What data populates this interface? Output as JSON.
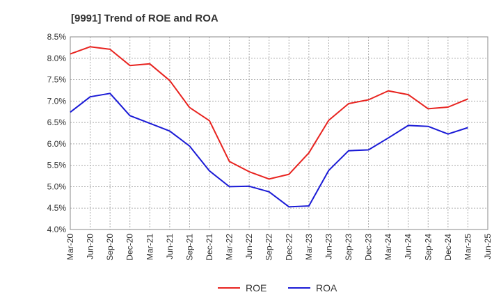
{
  "chart_data": {
    "type": "line",
    "title": "[9991]  Trend of ROE and ROA",
    "xlabel": "",
    "ylabel": "",
    "ylim": [
      4.0,
      8.5
    ],
    "y_ticks": [
      "4.0%",
      "4.5%",
      "5.0%",
      "5.5%",
      "6.0%",
      "6.5%",
      "7.0%",
      "7.5%",
      "8.0%",
      "8.5%"
    ],
    "y_tick_values": [
      4.0,
      4.5,
      5.0,
      5.5,
      6.0,
      6.5,
      7.0,
      7.5,
      8.0,
      8.5
    ],
    "categories": [
      "Mar-20",
      "Jun-20",
      "Sep-20",
      "Dec-20",
      "Mar-21",
      "Jun-21",
      "Sep-21",
      "Dec-21",
      "Mar-22",
      "Jun-22",
      "Sep-22",
      "Dec-22",
      "Mar-23",
      "Jun-23",
      "Sep-23",
      "Dec-23",
      "Mar-24",
      "Jun-24",
      "Sep-24",
      "Dec-24",
      "Mar-25",
      "Jun-25"
    ],
    "grid": true,
    "legend_position": "bottom",
    "series": [
      {
        "name": "ROE",
        "color": "#e8231f",
        "values": [
          8.1,
          8.27,
          8.21,
          7.83,
          7.87,
          7.48,
          6.85,
          6.54,
          5.59,
          5.35,
          5.18,
          5.29,
          5.79,
          6.55,
          6.94,
          7.03,
          7.24,
          7.15,
          6.82,
          6.86,
          7.05,
          null
        ]
      },
      {
        "name": "ROA",
        "color": "#1a1ad6",
        "values": [
          6.74,
          7.1,
          7.18,
          6.66,
          6.48,
          6.3,
          5.95,
          5.37,
          5.0,
          5.01,
          4.88,
          4.53,
          4.55,
          5.38,
          5.84,
          5.86,
          6.14,
          6.43,
          6.41,
          6.23,
          6.38,
          null
        ]
      }
    ]
  }
}
